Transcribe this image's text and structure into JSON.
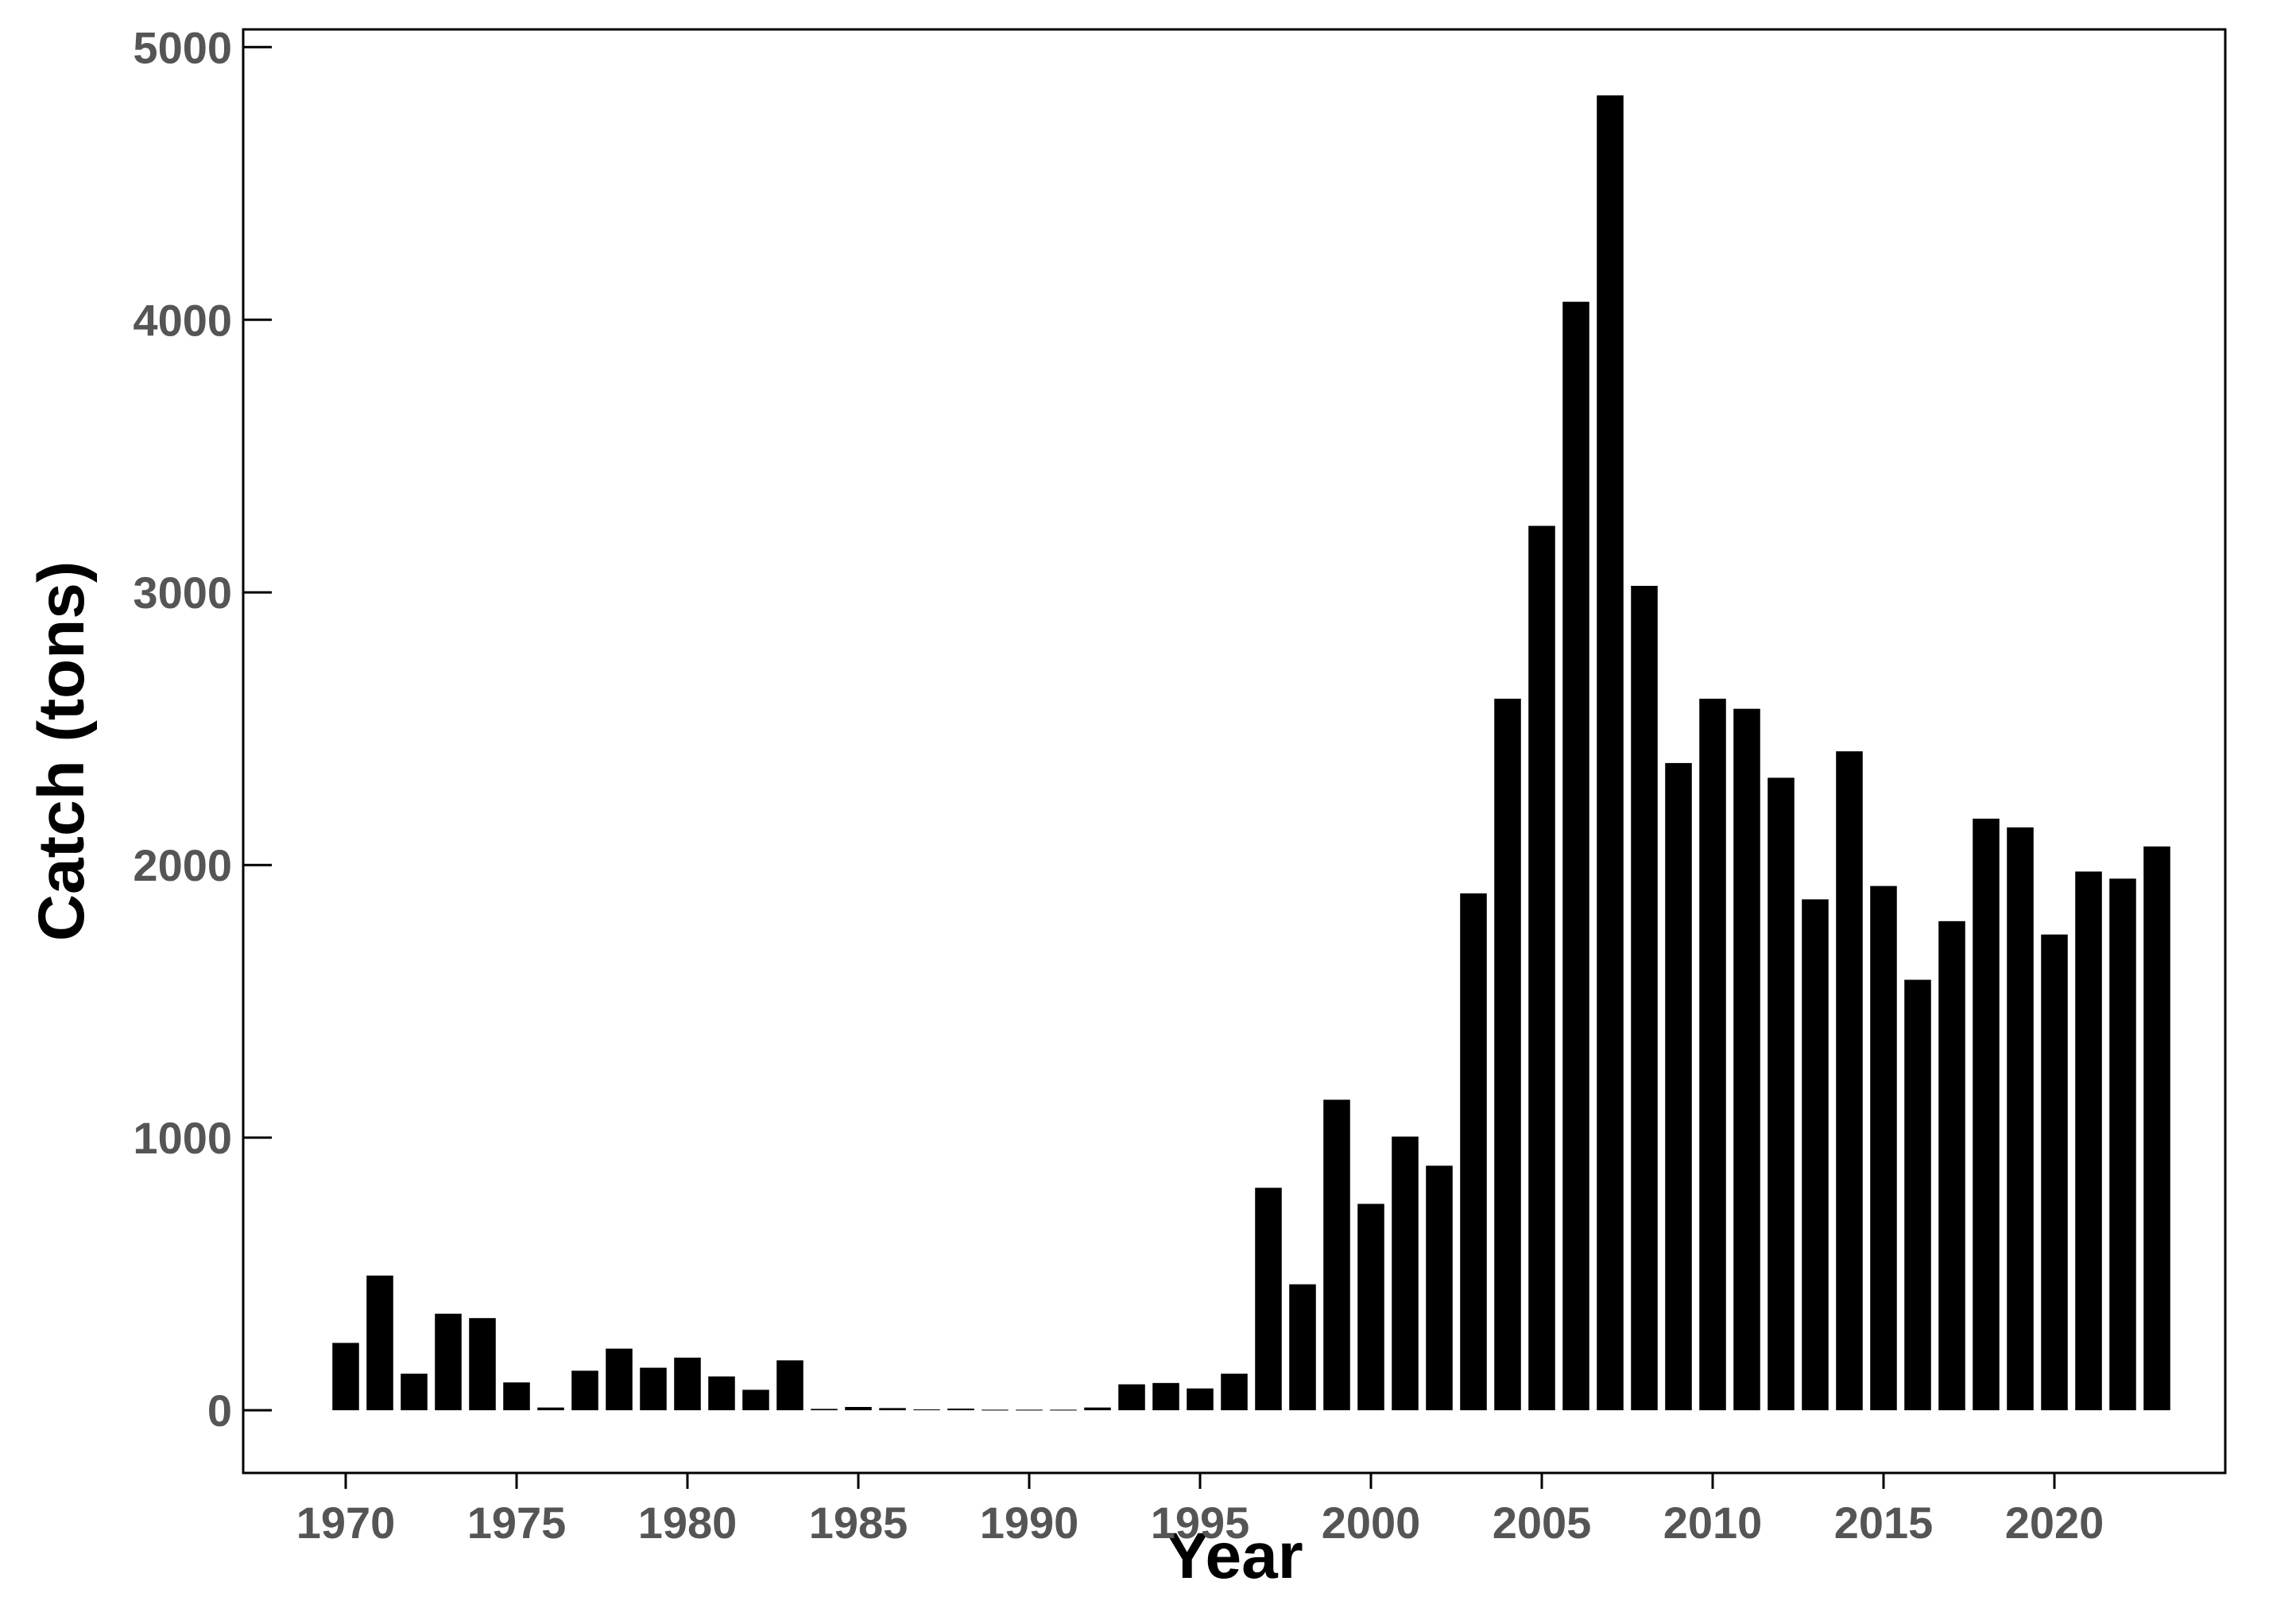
{
  "chart_data": {
    "type": "bar",
    "x_label": "Year",
    "y_label": "Catch (tons)",
    "x": [
      1970,
      1971,
      1972,
      1973,
      1974,
      1975,
      1976,
      1977,
      1978,
      1979,
      1980,
      1981,
      1982,
      1983,
      1984,
      1985,
      1986,
      1987,
      1988,
      1989,
      1990,
      1991,
      1992,
      1993,
      1994,
      1995,
      1996,
      1997,
      1998,
      1999,
      2000,
      2001,
      2002,
      2003,
      2004,
      2005,
      2006,
      2007,
      2008,
      2009,
      2010,
      2011,
      2012,
      2013,
      2014,
      2015,
      2016,
      2017,
      2018,
      2019,
      2020,
      2021,
      2022,
      2023
    ],
    "values": [
      247,
      494,
      134,
      354,
      338,
      102,
      10,
      145,
      226,
      156,
      193,
      124,
      75,
      183,
      5,
      12,
      8,
      3,
      6,
      2,
      2,
      2,
      10,
      95,
      100,
      80,
      134,
      816,
      462,
      1139,
      757,
      1004,
      897,
      1896,
      2610,
      3244,
      4066,
      4823,
      3024,
      2374,
      2610,
      2573,
      2320,
      1874,
      2417,
      1923,
      1579,
      1794,
      2170,
      2138,
      1745,
      1976,
      1950,
      2068
    ],
    "color": "#000000",
    "xlim": [
      1967,
      2025
    ],
    "xticks": [
      1970,
      1975,
      1980,
      1985,
      1990,
      1995,
      2000,
      2005,
      2010,
      2015,
      2020
    ],
    "ylim": [
      -230,
      5065
    ],
    "yticks": [
      0,
      1000,
      2000,
      3000,
      4000,
      5000
    ]
  }
}
